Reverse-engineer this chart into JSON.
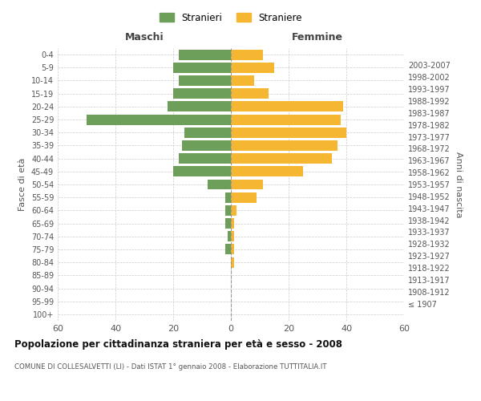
{
  "age_groups": [
    "100+",
    "95-99",
    "90-94",
    "85-89",
    "80-84",
    "75-79",
    "70-74",
    "65-69",
    "60-64",
    "55-59",
    "50-54",
    "45-49",
    "40-44",
    "35-39",
    "30-34",
    "25-29",
    "20-24",
    "15-19",
    "10-14",
    "5-9",
    "0-4"
  ],
  "birth_years": [
    "≤ 1907",
    "1908-1912",
    "1913-1917",
    "1918-1922",
    "1923-1927",
    "1928-1932",
    "1933-1937",
    "1938-1942",
    "1943-1947",
    "1948-1952",
    "1953-1957",
    "1958-1962",
    "1963-1967",
    "1968-1972",
    "1973-1977",
    "1978-1982",
    "1983-1987",
    "1988-1992",
    "1993-1997",
    "1998-2002",
    "2003-2007"
  ],
  "males": [
    0,
    0,
    0,
    0,
    0,
    2,
    1,
    2,
    2,
    2,
    8,
    20,
    18,
    17,
    16,
    50,
    22,
    20,
    18,
    20,
    18
  ],
  "females": [
    0,
    0,
    0,
    0,
    1,
    1,
    1,
    1,
    2,
    9,
    11,
    25,
    35,
    37,
    40,
    38,
    39,
    13,
    8,
    15,
    11
  ],
  "male_color": "#6d9e5a",
  "female_color": "#f5b731",
  "background_color": "#ffffff",
  "grid_color": "#cccccc",
  "title": "Popolazione per cittadinanza straniera per età e sesso - 2008",
  "subtitle": "COMUNE DI COLLESALVETTI (LI) - Dati ISTAT 1° gennaio 2008 - Elaborazione TUTTITALIA.IT",
  "xlabel_left": "Maschi",
  "xlabel_right": "Femmine",
  "ylabel_left": "Fasce di età",
  "ylabel_right": "Anni di nascita",
  "legend_male": "Stranieri",
  "legend_female": "Straniere",
  "xlim": 60,
  "bar_height": 0.8
}
